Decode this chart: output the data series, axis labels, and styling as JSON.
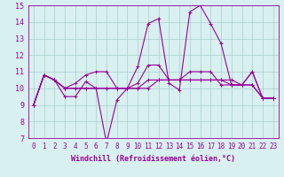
{
  "xlabel": "Windchill (Refroidissement éolien,°C)",
  "x": [
    0,
    1,
    2,
    3,
    4,
    5,
    6,
    7,
    8,
    9,
    10,
    11,
    12,
    13,
    14,
    15,
    16,
    17,
    18,
    19,
    20,
    21,
    22,
    23
  ],
  "lines": [
    [
      9.0,
      10.8,
      10.5,
      9.5,
      9.5,
      10.4,
      10.0,
      6.7,
      9.3,
      10.0,
      11.3,
      13.9,
      14.2,
      10.3,
      9.9,
      14.6,
      15.0,
      13.9,
      12.7,
      10.2,
      10.2,
      11.0,
      9.4,
      9.4
    ],
    [
      9.0,
      10.8,
      10.5,
      10.0,
      10.3,
      10.8,
      11.0,
      11.0,
      10.0,
      10.0,
      10.3,
      11.4,
      11.4,
      10.5,
      10.5,
      11.0,
      11.0,
      11.0,
      10.2,
      10.2,
      10.2,
      11.0,
      9.4,
      9.4
    ],
    [
      9.0,
      10.8,
      10.5,
      10.0,
      10.0,
      10.0,
      10.0,
      10.0,
      10.0,
      10.0,
      10.0,
      10.5,
      10.5,
      10.5,
      10.5,
      10.5,
      10.5,
      10.5,
      10.5,
      10.2,
      10.2,
      10.2,
      9.4,
      9.4
    ],
    [
      9.0,
      10.8,
      10.5,
      10.0,
      10.0,
      10.0,
      10.0,
      10.0,
      10.0,
      10.0,
      10.0,
      10.0,
      10.5,
      10.5,
      10.5,
      10.5,
      10.5,
      10.5,
      10.5,
      10.5,
      10.2,
      10.2,
      9.4,
      9.4
    ]
  ],
  "line_color": "#990099",
  "marker": "+",
  "marker_size": 3,
  "linewidth": 0.8,
  "bg_color": "#d8f0f0",
  "grid_color": "#aacece",
  "ylim": [
    7,
    15
  ],
  "yticks": [
    7,
    8,
    9,
    10,
    11,
    12,
    13,
    14,
    15
  ],
  "xtick_labels": [
    "0",
    "1",
    "2",
    "3",
    "4",
    "5",
    "6",
    "7",
    "8",
    "9",
    "10",
    "11",
    "12",
    "13",
    "14",
    "15",
    "16",
    "17",
    "18",
    "19",
    "20",
    "21",
    "22",
    "23"
  ],
  "xlabel_fontsize": 6,
  "tick_fontsize": 5.5,
  "ytick_fontsize": 6
}
